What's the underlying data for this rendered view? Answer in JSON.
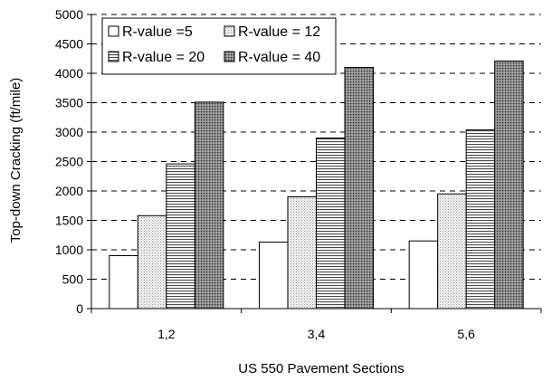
{
  "chart_data": {
    "type": "bar",
    "xlabel": "US 550 Pavement Sections",
    "ylabel": "Top-down Cracking (ft/mile)",
    "ylim": [
      0,
      5000
    ],
    "yticks": [
      0,
      500,
      1000,
      1500,
      2000,
      2500,
      3000,
      3500,
      4000,
      4500,
      5000
    ],
    "grid": "horizontal dashed",
    "legend_placement": "top-left",
    "categories": [
      "1,2",
      "3,4",
      "5,6"
    ],
    "series": [
      {
        "name": "R-value =5",
        "values": [
          900,
          1130,
          1150
        ],
        "pattern": "empty"
      },
      {
        "name": "R-value = 12",
        "values": [
          1580,
          1900,
          1950
        ],
        "pattern": "light-dots"
      },
      {
        "name": "R-value = 20",
        "values": [
          2460,
          2900,
          3040
        ],
        "pattern": "horizontal-lines"
      },
      {
        "name": "R-value = 40",
        "values": [
          3510,
          4100,
          4210
        ],
        "pattern": "dark-dots"
      }
    ]
  }
}
